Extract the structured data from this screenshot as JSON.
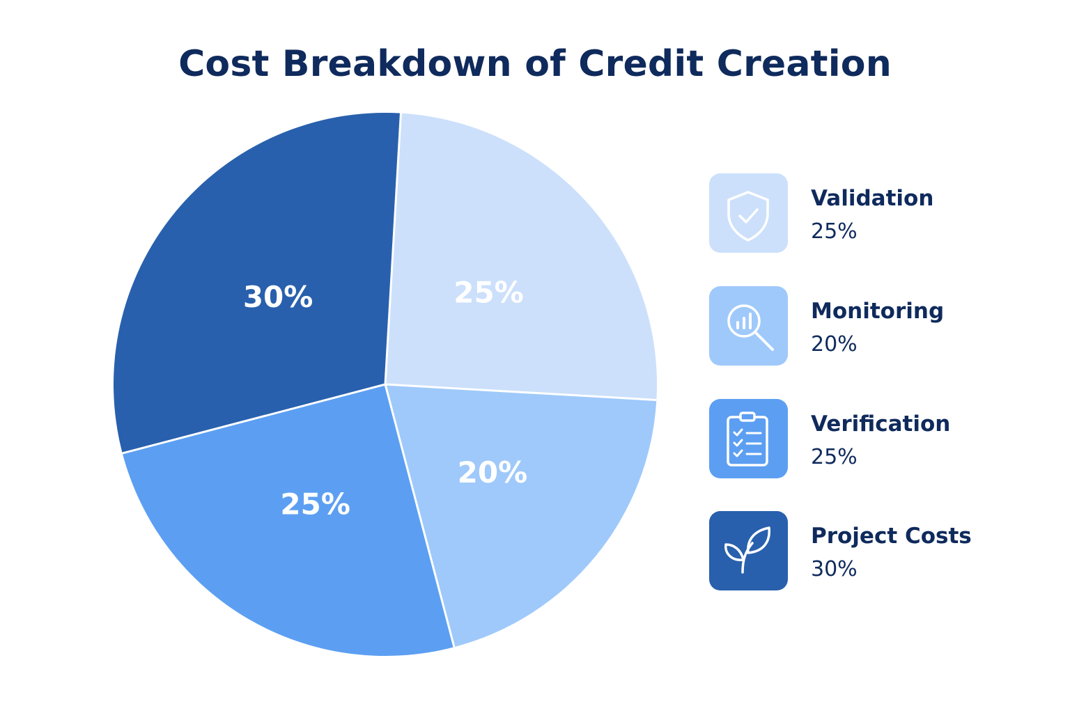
{
  "chart_data": {
    "type": "pie",
    "title": "Cost Breakdown of Credit Creation",
    "slices": [
      {
        "name": "Validation",
        "value": 25,
        "label": "25%",
        "color": "#cce0fb"
      },
      {
        "name": "Monitoring",
        "value": 20,
        "label": "20%",
        "color": "#9fc9fa"
      },
      {
        "name": "Verification",
        "value": 25,
        "label": "25%",
        "color": "#5c9ff2"
      },
      {
        "name": "Project Costs",
        "value": 30,
        "label": "30%",
        "color": "#2860ad"
      }
    ],
    "legend_position": "right"
  },
  "legend": [
    {
      "name": "Validation",
      "value": "25%",
      "icon": "shield-check-icon",
      "color": "#cce0fb"
    },
    {
      "name": "Monitoring",
      "value": "20%",
      "icon": "magnifier-chart-icon",
      "color": "#9fc9fa"
    },
    {
      "name": "Verification",
      "value": "25%",
      "icon": "clipboard-checklist-icon",
      "color": "#5c9ff2"
    },
    {
      "name": "Project Costs",
      "value": "30%",
      "icon": "sprout-icon",
      "color": "#2860ad"
    }
  ]
}
